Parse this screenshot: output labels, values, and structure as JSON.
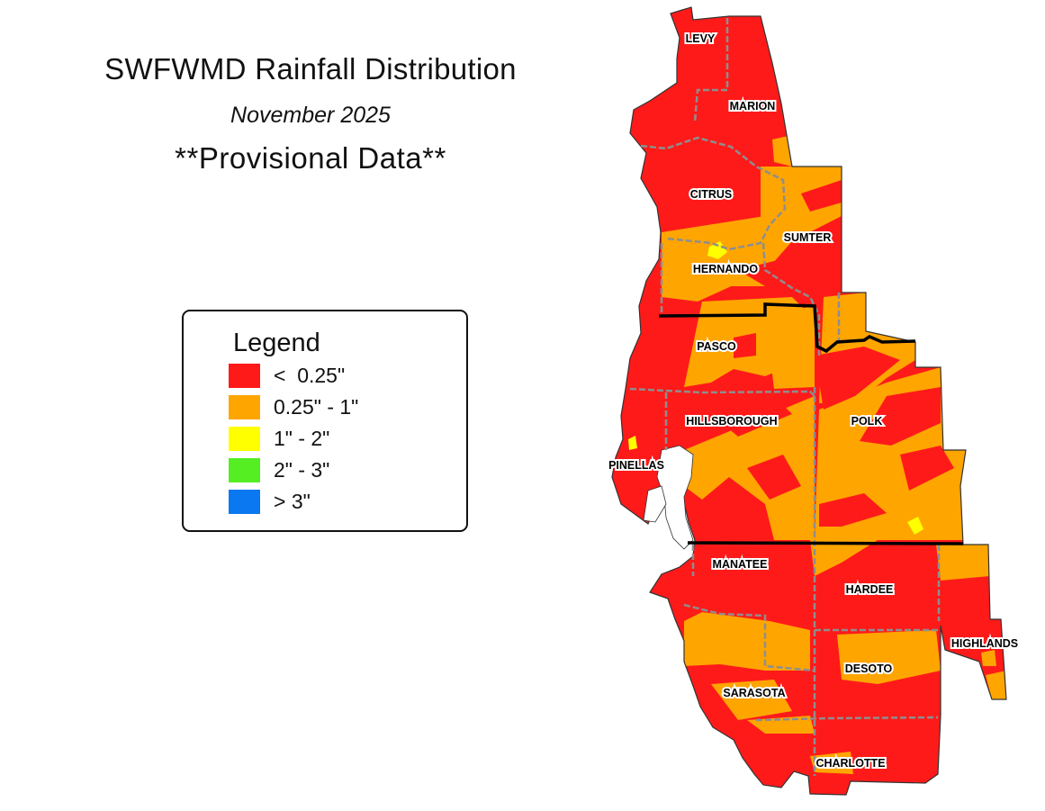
{
  "title": "SWFWMD Rainfall Distribution",
  "subtitle": "November 2025",
  "note": "**Provisional Data**",
  "colors": {
    "lt_025": "#ff1a1a",
    "r025_1": "#ffa500",
    "r1_2": "#ffff00",
    "r2_3": "#55ee22",
    "gt_3": "#0a78f0",
    "county_border": "#9a9a9a",
    "region_border": "#000000"
  },
  "legend": {
    "title": "Legend",
    "items": [
      {
        "label": "<  0.25\"",
        "color": "#ff1a1a"
      },
      {
        "label": "0.25\" - 1\"",
        "color": "#ffa500"
      },
      {
        "label": "1\" - 2\"",
        "color": "#ffff00"
      },
      {
        "label": "2\" - 3\"",
        "color": "#55ee22"
      },
      {
        "label": "> 3\"",
        "color": "#0a78f0"
      }
    ]
  },
  "counties": [
    "LEVY",
    "MARION",
    "CITRUS",
    "SUMTER",
    "HERNANDO",
    "PASCO",
    "HILLSBOROUGH",
    "POLK",
    "PINELLAS",
    "MANATEE",
    "HARDEE",
    "HIGHLANDS",
    "DESOTO",
    "SARASOTA",
    "CHARLOTTE"
  ]
}
